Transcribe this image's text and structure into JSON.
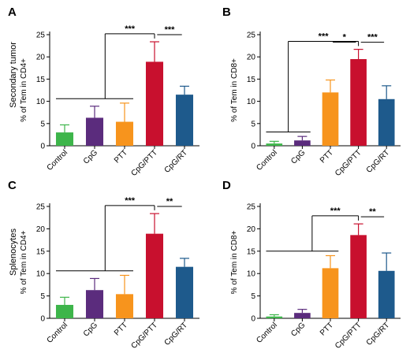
{
  "row_labels": [
    "Secondary tumor",
    "Splenocytes"
  ],
  "colors": {
    "Control": "#3db54a",
    "CpG": "#5b2c7d",
    "PTT": "#f7941d",
    "CpG/PTT": "#c8102e",
    "CpG/RT": "#1e5a8c"
  },
  "chart_data": [
    {
      "panel": "A",
      "type": "bar",
      "categories": [
        "Control",
        "CpG",
        "PTT",
        "CpG/PTT",
        "CpG/RT"
      ],
      "values": [
        3.0,
        6.3,
        5.4,
        18.9,
        11.5
      ],
      "errors": [
        1.7,
        2.6,
        4.2,
        4.5,
        1.9
      ],
      "ylabel": "% of Tem in CD4+",
      "ylim": [
        0,
        25
      ],
      "yticks": [
        0,
        5,
        10,
        15,
        20,
        25
      ],
      "significance": [
        {
          "from": [
            0,
            1,
            2
          ],
          "to": 3,
          "label": "***"
        },
        {
          "from": [
            3
          ],
          "to": 4,
          "label": "***"
        }
      ]
    },
    {
      "panel": "B",
      "type": "bar",
      "categories": [
        "Control",
        "CpG",
        "PTT",
        "CpG/PTT",
        "CpG/RT"
      ],
      "values": [
        0.5,
        1.2,
        12.0,
        19.5,
        10.5
      ],
      "errors": [
        0.5,
        0.9,
        2.8,
        2.2,
        3.0
      ],
      "ylabel": "% of Tem in CD8+",
      "ylim": [
        0,
        25
      ],
      "yticks": [
        0,
        5,
        10,
        15,
        20,
        25
      ],
      "significance": [
        {
          "from": [
            0,
            1
          ],
          "to": 3,
          "label": "***"
        },
        {
          "from": [
            2
          ],
          "to": 3,
          "label": "*"
        },
        {
          "from": [
            3
          ],
          "to": 4,
          "label": "***"
        }
      ]
    },
    {
      "panel": "C",
      "type": "bar",
      "categories": [
        "Control",
        "CpG",
        "PTT",
        "CpG/PTT",
        "CpG/RT"
      ],
      "values": [
        3.0,
        6.3,
        5.4,
        18.9,
        11.5
      ],
      "errors": [
        1.7,
        2.6,
        4.2,
        4.5,
        1.9
      ],
      "ylabel": "% of Tem in CD4+",
      "ylim": [
        0,
        25
      ],
      "yticks": [
        0,
        5,
        10,
        15,
        20,
        25
      ],
      "significance": [
        {
          "from": [
            0,
            1,
            2
          ],
          "to": 3,
          "label": "***"
        },
        {
          "from": [
            3
          ],
          "to": 4,
          "label": "**"
        }
      ]
    },
    {
      "panel": "D",
      "type": "bar",
      "categories": [
        "Control",
        "CpG",
        "PTT",
        "CpG/PTT",
        "CpG/RT"
      ],
      "values": [
        0.4,
        1.2,
        11.2,
        18.6,
        10.6
      ],
      "errors": [
        0.4,
        0.8,
        2.8,
        2.5,
        4.0
      ],
      "ylabel": "% of Tem in CD8+",
      "ylim": [
        0,
        25
      ],
      "yticks": [
        0,
        5,
        10,
        15,
        20,
        25
      ],
      "significance": [
        {
          "from": [
            0,
            1,
            2
          ],
          "to": 3,
          "label": "***"
        },
        {
          "from": [
            3
          ],
          "to": 4,
          "label": "**"
        }
      ]
    }
  ]
}
